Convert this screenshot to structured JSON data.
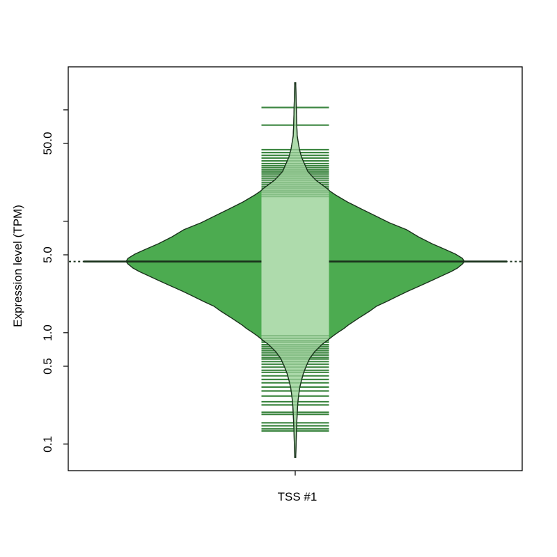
{
  "figure": {
    "background": "#ffffff",
    "x_axis": {
      "label": "TSS #1"
    },
    "y_axis": {
      "label": "Expression level (TPM)",
      "ticks": [
        {
          "value": 100,
          "label": ""
        },
        {
          "value": 50,
          "label": "50.0"
        },
        {
          "value": 10,
          "label": ""
        },
        {
          "value": 5,
          "label": "5.0"
        },
        {
          "value": 1,
          "label": "1.0"
        },
        {
          "value": 0.5,
          "label": "0.5"
        },
        {
          "value": 0.1,
          "label": "0.1"
        }
      ]
    }
  },
  "chart_data": {
    "type": "violin",
    "title": "",
    "ylabel": "Expression level (TPM)",
    "xlabel": "",
    "categories": [
      "TSS #1"
    ],
    "y_scale": "log10",
    "ylim": [
      0.006,
      240
    ],
    "grid": false,
    "legend": null,
    "y_ticks": {
      "values": [
        100,
        50,
        10,
        5,
        1,
        0.5,
        0.1
      ],
      "labels": [
        "",
        "50.0",
        "",
        "5.0",
        "1.0",
        "0.5",
        "0.1"
      ]
    },
    "series": [
      {
        "name": "TSS #1",
        "median_tpm": 4.35,
        "overall_line_tpm": 4.35,
        "colors": {
          "fill": "#4cab50",
          "inner_band": "#aedbac",
          "beanline": "#2d7c31",
          "outline": "#1a321c"
        },
        "density_profile": [
          [
            175,
            0.003
          ],
          [
            127,
            0.005
          ],
          [
            96,
            0.007
          ],
          [
            72,
            0.009
          ],
          [
            58,
            0.012
          ],
          [
            50,
            0.019
          ],
          [
            43.9,
            0.025
          ],
          [
            37.7,
            0.037
          ],
          [
            32.9,
            0.054
          ],
          [
            28,
            0.074
          ],
          [
            25.4,
            0.099
          ],
          [
            23.3,
            0.123
          ],
          [
            21.4,
            0.156
          ],
          [
            19.6,
            0.189
          ],
          [
            18.6,
            0.206
          ],
          [
            17.2,
            0.239
          ],
          [
            14.9,
            0.309
          ],
          [
            12.9,
            0.391
          ],
          [
            11.2,
            0.473
          ],
          [
            9.7,
            0.556
          ],
          [
            8.4,
            0.658
          ],
          [
            7.25,
            0.728
          ],
          [
            6.3,
            0.807
          ],
          [
            5.6,
            0.885
          ],
          [
            5.08,
            0.947
          ],
          [
            4.65,
            0.988
          ],
          [
            4.35,
            1.0
          ],
          [
            4.13,
            0.988
          ],
          [
            3.8,
            0.959
          ],
          [
            3.54,
            0.922
          ],
          [
            3.29,
            0.877
          ],
          [
            2.94,
            0.807
          ],
          [
            2.65,
            0.741
          ],
          [
            2.36,
            0.667
          ],
          [
            2.14,
            0.609
          ],
          [
            1.9,
            0.539
          ],
          [
            1.73,
            0.481
          ],
          [
            1.56,
            0.44
          ],
          [
            1.45,
            0.407
          ],
          [
            1.35,
            0.375
          ],
          [
            1.25,
            0.342
          ],
          [
            1.17,
            0.313
          ],
          [
            1.09,
            0.288
          ],
          [
            1.01,
            0.255
          ],
          [
            0.94,
            0.226
          ],
          [
            0.86,
            0.193
          ],
          [
            0.78,
            0.156
          ],
          [
            0.675,
            0.115
          ],
          [
            0.59,
            0.086
          ],
          [
            0.505,
            0.066
          ],
          [
            0.435,
            0.049
          ],
          [
            0.375,
            0.037
          ],
          [
            0.325,
            0.027
          ],
          [
            0.28,
            0.021
          ],
          [
            0.242,
            0.016
          ],
          [
            0.21,
            0.013
          ],
          [
            0.182,
            0.011
          ],
          [
            0.157,
            0.009
          ],
          [
            0.136,
            0.0074
          ],
          [
            0.11,
            0.0058
          ],
          [
            0.089,
            0.0041
          ],
          [
            0.0757,
            0.0029
          ]
        ],
        "observations_tpm": [
          105,
          73,
          43.9,
          41.4,
          39.1,
          36.9,
          34.8,
          32.9,
          31.5,
          30.2,
          28.9,
          27.7,
          26.6,
          25.5,
          24.4,
          23.4,
          22.4,
          21.5,
          20.6,
          19.8,
          18.9,
          18.2,
          17.4,
          16.7,
          0.94,
          0.89,
          0.85,
          0.82,
          0.78,
          0.75,
          0.72,
          0.69,
          0.66,
          0.63,
          0.6,
          0.58,
          0.55,
          0.52,
          0.49,
          0.46,
          0.44,
          0.41,
          0.38,
          0.355,
          0.325,
          0.3,
          0.27,
          0.24,
          0.225,
          0.193,
          0.185,
          0.155,
          0.146,
          0.137,
          0.131
        ]
      }
    ]
  }
}
